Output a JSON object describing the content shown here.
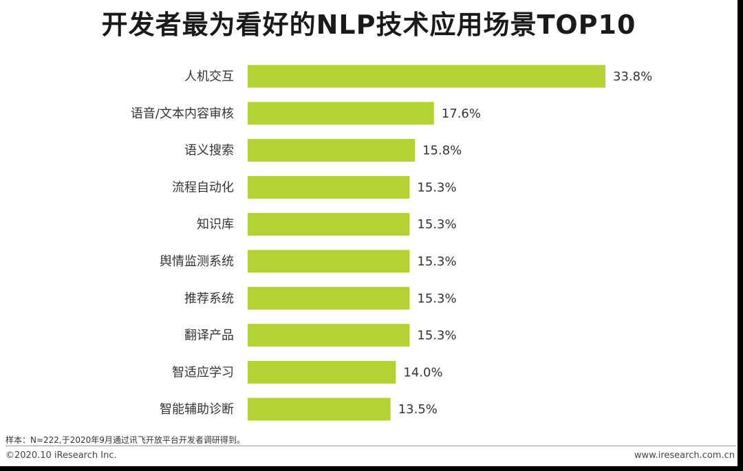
{
  "page": {
    "title": "开发者最为看好的NLP技术应用场景TOP10",
    "note": "样本：N=222,于2020年9月通过讯飞开放平台开发者调研得到。",
    "copyright": "©2020.10 iResearch Inc.",
    "website": "www.iresearch.com.cn"
  },
  "colors": {
    "bar": "#b3d335",
    "text": "#333333",
    "title": "#1a1a1a"
  },
  "chart_data": {
    "type": "bar",
    "orientation": "horizontal",
    "title": "开发者最为看好的NLP技术应用场景TOP10",
    "xlabel": "",
    "ylabel": "",
    "unit": "%",
    "xlim": [
      0,
      33.8
    ],
    "grid": false,
    "legend": "none",
    "categories": [
      "人机交互",
      "语音/文本内容审核",
      "语义搜索",
      "流程自动化",
      "知识库",
      "舆情监测系统",
      "推荐系统",
      "翻译产品",
      "智适应学习",
      "智能辅助诊断"
    ],
    "values": [
      33.8,
      17.6,
      15.8,
      15.3,
      15.3,
      15.3,
      15.3,
      15.3,
      14.0,
      13.5
    ],
    "value_labels": [
      "33.8%",
      "17.6%",
      "15.8%",
      "15.3%",
      "15.3%",
      "15.3%",
      "15.3%",
      "15.3%",
      "14.0%",
      "13.5%"
    ]
  }
}
